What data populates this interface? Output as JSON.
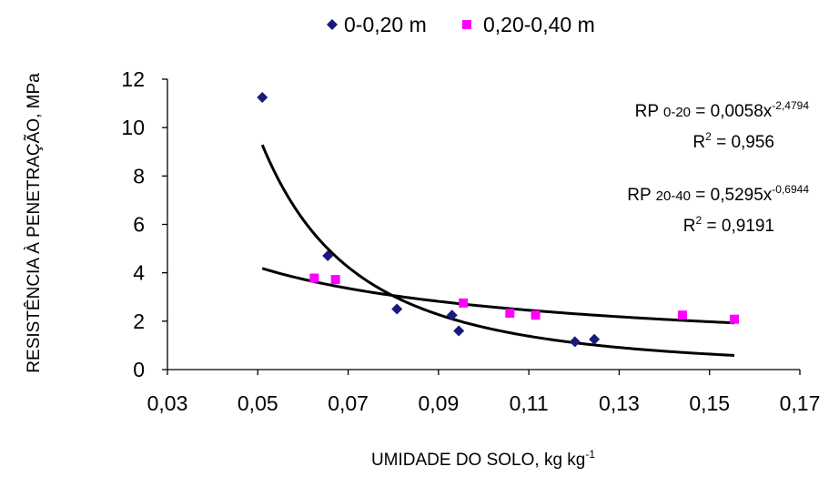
{
  "chart_data": {
    "type": "scatter",
    "title": "",
    "xlabel": "UMIDADE DO SOLO, kg kg",
    "xlabel_superscript": "-1",
    "ylabel": "RESISTÊNCIA À PENETRAÇÃO, MPa",
    "xlim": [
      0.03,
      0.17
    ],
    "ylim": [
      0,
      12
    ],
    "x_ticks": [
      0.03,
      0.05,
      0.07,
      0.09,
      0.11,
      0.13,
      0.15,
      0.17
    ],
    "x_tick_labels": [
      "0,03",
      "0,05",
      "0,07",
      "0,09",
      "0,11",
      "0,13",
      "0,15",
      "0,17"
    ],
    "y_ticks": [
      0,
      2,
      4,
      6,
      8,
      10,
      12
    ],
    "y_tick_labels": [
      "0",
      "2",
      "4",
      "6",
      "8",
      "10",
      "12"
    ],
    "grid": false,
    "legend_position": "top",
    "series": [
      {
        "name": "0-0,20 m",
        "marker": "diamond",
        "color": "#1a1a7a",
        "points": [
          {
            "x": 0.051,
            "y": 11.25
          },
          {
            "x": 0.0655,
            "y": 4.7
          },
          {
            "x": 0.0808,
            "y": 2.5
          },
          {
            "x": 0.093,
            "y": 2.25
          },
          {
            "x": 0.0945,
            "y": 1.6
          },
          {
            "x": 0.1202,
            "y": 1.15
          },
          {
            "x": 0.1245,
            "y": 1.25
          }
        ]
      },
      {
        "name": "0,20-0,40 m",
        "marker": "square",
        "color": "#ff00ff",
        "points": [
          {
            "x": 0.0625,
            "y": 3.78
          },
          {
            "x": 0.0672,
            "y": 3.72
          },
          {
            "x": 0.0955,
            "y": 2.75
          },
          {
            "x": 0.1058,
            "y": 2.33
          },
          {
            "x": 0.1115,
            "y": 2.25
          },
          {
            "x": 0.144,
            "y": 2.25
          },
          {
            "x": 0.1555,
            "y": 2.08
          }
        ]
      }
    ],
    "trendlines": [
      {
        "series": "0-0,20 m",
        "type": "power",
        "a": 0.0058,
        "b": -2.4794,
        "x_range": [
          0.051,
          0.1555
        ],
        "color": "#000000"
      },
      {
        "series": "0,20-0,40 m",
        "type": "power",
        "a": 0.5295,
        "b": -0.6944,
        "x_range": [
          0.051,
          0.1555
        ],
        "color": "#000000"
      }
    ],
    "annotations": {
      "eq1": {
        "prefix": "RP ",
        "sub": "0-20",
        "mid": " = 0,0058x",
        "sup": "-2,4794",
        "r2_label": "R",
        "r2_sup": "2",
        "r2_value": " = 0,956"
      },
      "eq2": {
        "prefix": "RP ",
        "sub": "20-40",
        "mid": " = 0,5295x",
        "sup": "-0,6944",
        "r2_label": "R",
        "r2_sup": "2",
        "r2_value": " = 0,9191"
      }
    }
  }
}
